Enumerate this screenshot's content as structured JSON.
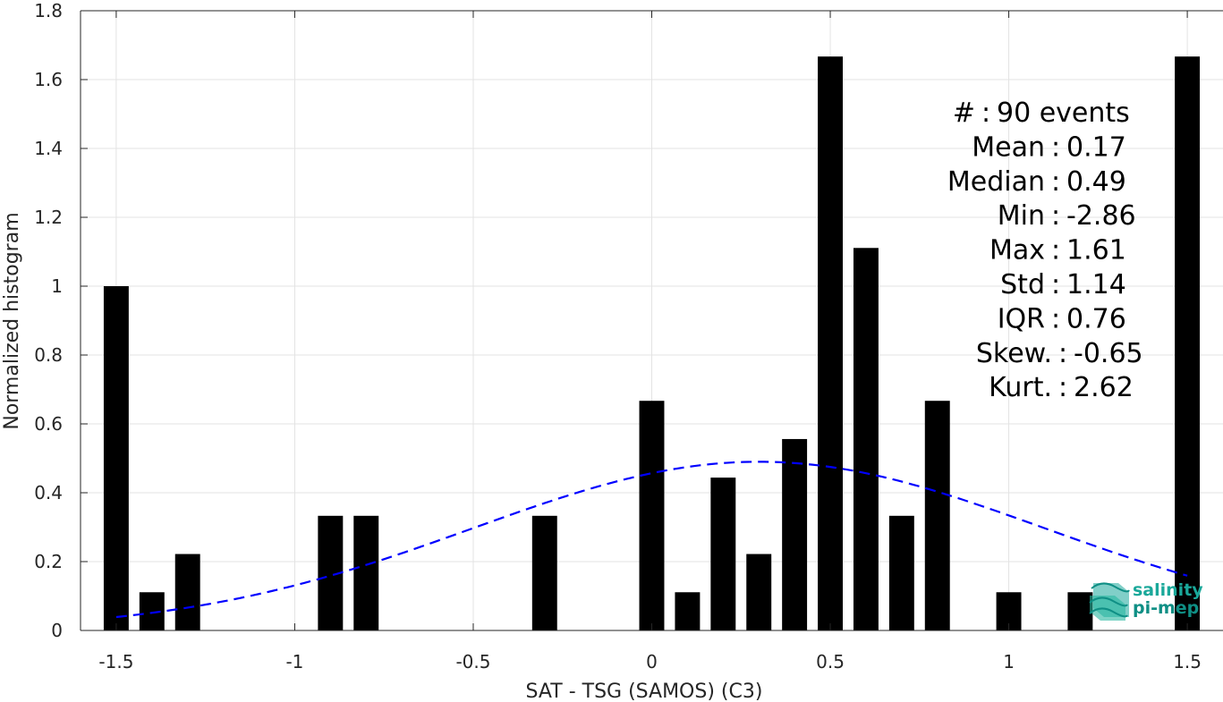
{
  "chart_data": {
    "type": "bar",
    "xlabel": "SAT - TSG (SAMOS) (C3)",
    "ylabel": "Normalized histogram",
    "xlim": [
      -1.6,
      1.6
    ],
    "ylim": [
      0,
      1.8
    ],
    "grid": true,
    "x_ticks": [
      -1.5,
      -1,
      -0.5,
      0,
      0.5,
      1,
      1.5
    ],
    "x_tick_labels": [
      "-1.5",
      "-1",
      "-0.5",
      "0",
      "0.5",
      "1",
      "1.5"
    ],
    "y_ticks": [
      0,
      0.2,
      0.4,
      0.6,
      0.8,
      1,
      1.2,
      1.4,
      1.6,
      1.8
    ],
    "y_tick_labels": [
      "0",
      "0.2",
      "0.4",
      "0.6",
      "0.8",
      "1",
      "1.2",
      "1.4",
      "1.6",
      "1.8"
    ],
    "bar_width": 0.07,
    "bars": [
      {
        "x": -1.5,
        "value": 1.0
      },
      {
        "x": -1.4,
        "value": 0.111
      },
      {
        "x": -1.3,
        "value": 0.222
      },
      {
        "x": -0.9,
        "value": 0.333
      },
      {
        "x": -0.8,
        "value": 0.333
      },
      {
        "x": -0.3,
        "value": 0.333
      },
      {
        "x": 0.0,
        "value": 0.667
      },
      {
        "x": 0.1,
        "value": 0.111
      },
      {
        "x": 0.2,
        "value": 0.444
      },
      {
        "x": 0.3,
        "value": 0.222
      },
      {
        "x": 0.4,
        "value": 0.556
      },
      {
        "x": 0.5,
        "value": 1.667
      },
      {
        "x": 0.6,
        "value": 1.111
      },
      {
        "x": 0.7,
        "value": 0.333
      },
      {
        "x": 0.8,
        "value": 0.667
      },
      {
        "x": 1.0,
        "value": 0.111
      },
      {
        "x": 1.2,
        "value": 0.111
      },
      {
        "x": 1.5,
        "value": 1.667
      }
    ],
    "fit_curve": {
      "style": "dashed",
      "color": "#0000ff",
      "x_range": [
        -1.5,
        1.5
      ],
      "peak_x": 0.3,
      "peak_y": 0.49,
      "sigma": 0.8
    },
    "bar_color": "#000000",
    "stats": [
      {
        "label": "#  ",
        "value": "90 events"
      },
      {
        "label": "Mean",
        "value": "0.17"
      },
      {
        "label": "Median",
        "value": "0.49"
      },
      {
        "label": "Min",
        "value": "-2.86"
      },
      {
        "label": "Max",
        "value": "1.61"
      },
      {
        "label": "Std",
        "value": "1.14"
      },
      {
        "label": "IQR",
        "value": "0.76"
      },
      {
        "label": "Skew.",
        "value": "-0.65"
      },
      {
        "label": "Kurt.",
        "value": "2.62"
      }
    ]
  },
  "logo": {
    "line1": "salinity",
    "line2": "pi-mep",
    "color": "#1aa89a"
  }
}
